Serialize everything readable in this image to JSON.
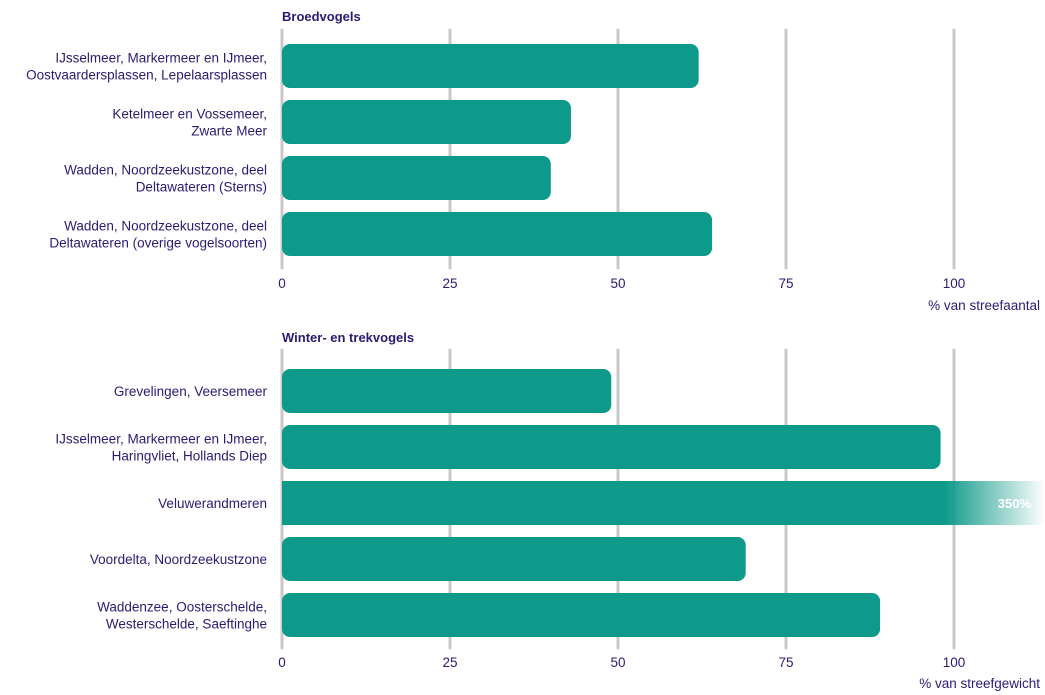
{
  "colors": {
    "bar": "#0e9a8a",
    "gridline": "#c8c8c8",
    "text": "#2c1a74",
    "value_label": "#ffffff"
  },
  "chart_data": [
    {
      "type": "bar",
      "orientation": "horizontal",
      "title": "Broedvogels",
      "categories": [
        [
          "IJsselmeer, Markermeer en IJmeer,",
          "Oostvaardersplassen, Lepelaarsplassen"
        ],
        [
          "Ketelmeer en Vossemeer,",
          "Zwarte Meer"
        ],
        [
          "Wadden, Noordzeekustzone, deel",
          "Deltawateren (Sterns)"
        ],
        [
          "Wadden, Noordzeekustzone, deel",
          "Deltawateren (overige vogelsoorten)"
        ]
      ],
      "values": [
        62,
        43,
        40,
        64
      ],
      "xlim": [
        0,
        100
      ],
      "xticks": [
        "0",
        "25",
        "50",
        "75",
        "100"
      ],
      "xlabel": "% van streefaantal",
      "grid": true
    },
    {
      "type": "bar",
      "orientation": "horizontal",
      "title": "Winter- en trekvogels",
      "categories": [
        [
          "Grevelingen, Veersemeer"
        ],
        [
          "IJsselmeer, Markermeer en IJmeer,",
          "Haringvliet, Hollands Diep"
        ],
        [
          "Veluwerandmeren"
        ],
        [
          "Voordelta, Noordzeekustzone"
        ],
        [
          "Waddenzee, Oosterschelde,",
          "Westerschelde, Saeftinghe"
        ]
      ],
      "values": [
        49,
        98,
        350,
        69,
        89
      ],
      "value_labels": [
        "",
        "",
        "350%",
        "",
        ""
      ],
      "xlim": [
        0,
        100
      ],
      "xticks": [
        "0",
        "25",
        "50",
        "75",
        "100"
      ],
      "xlabel": "% van streefgewicht",
      "grid": true
    }
  ]
}
